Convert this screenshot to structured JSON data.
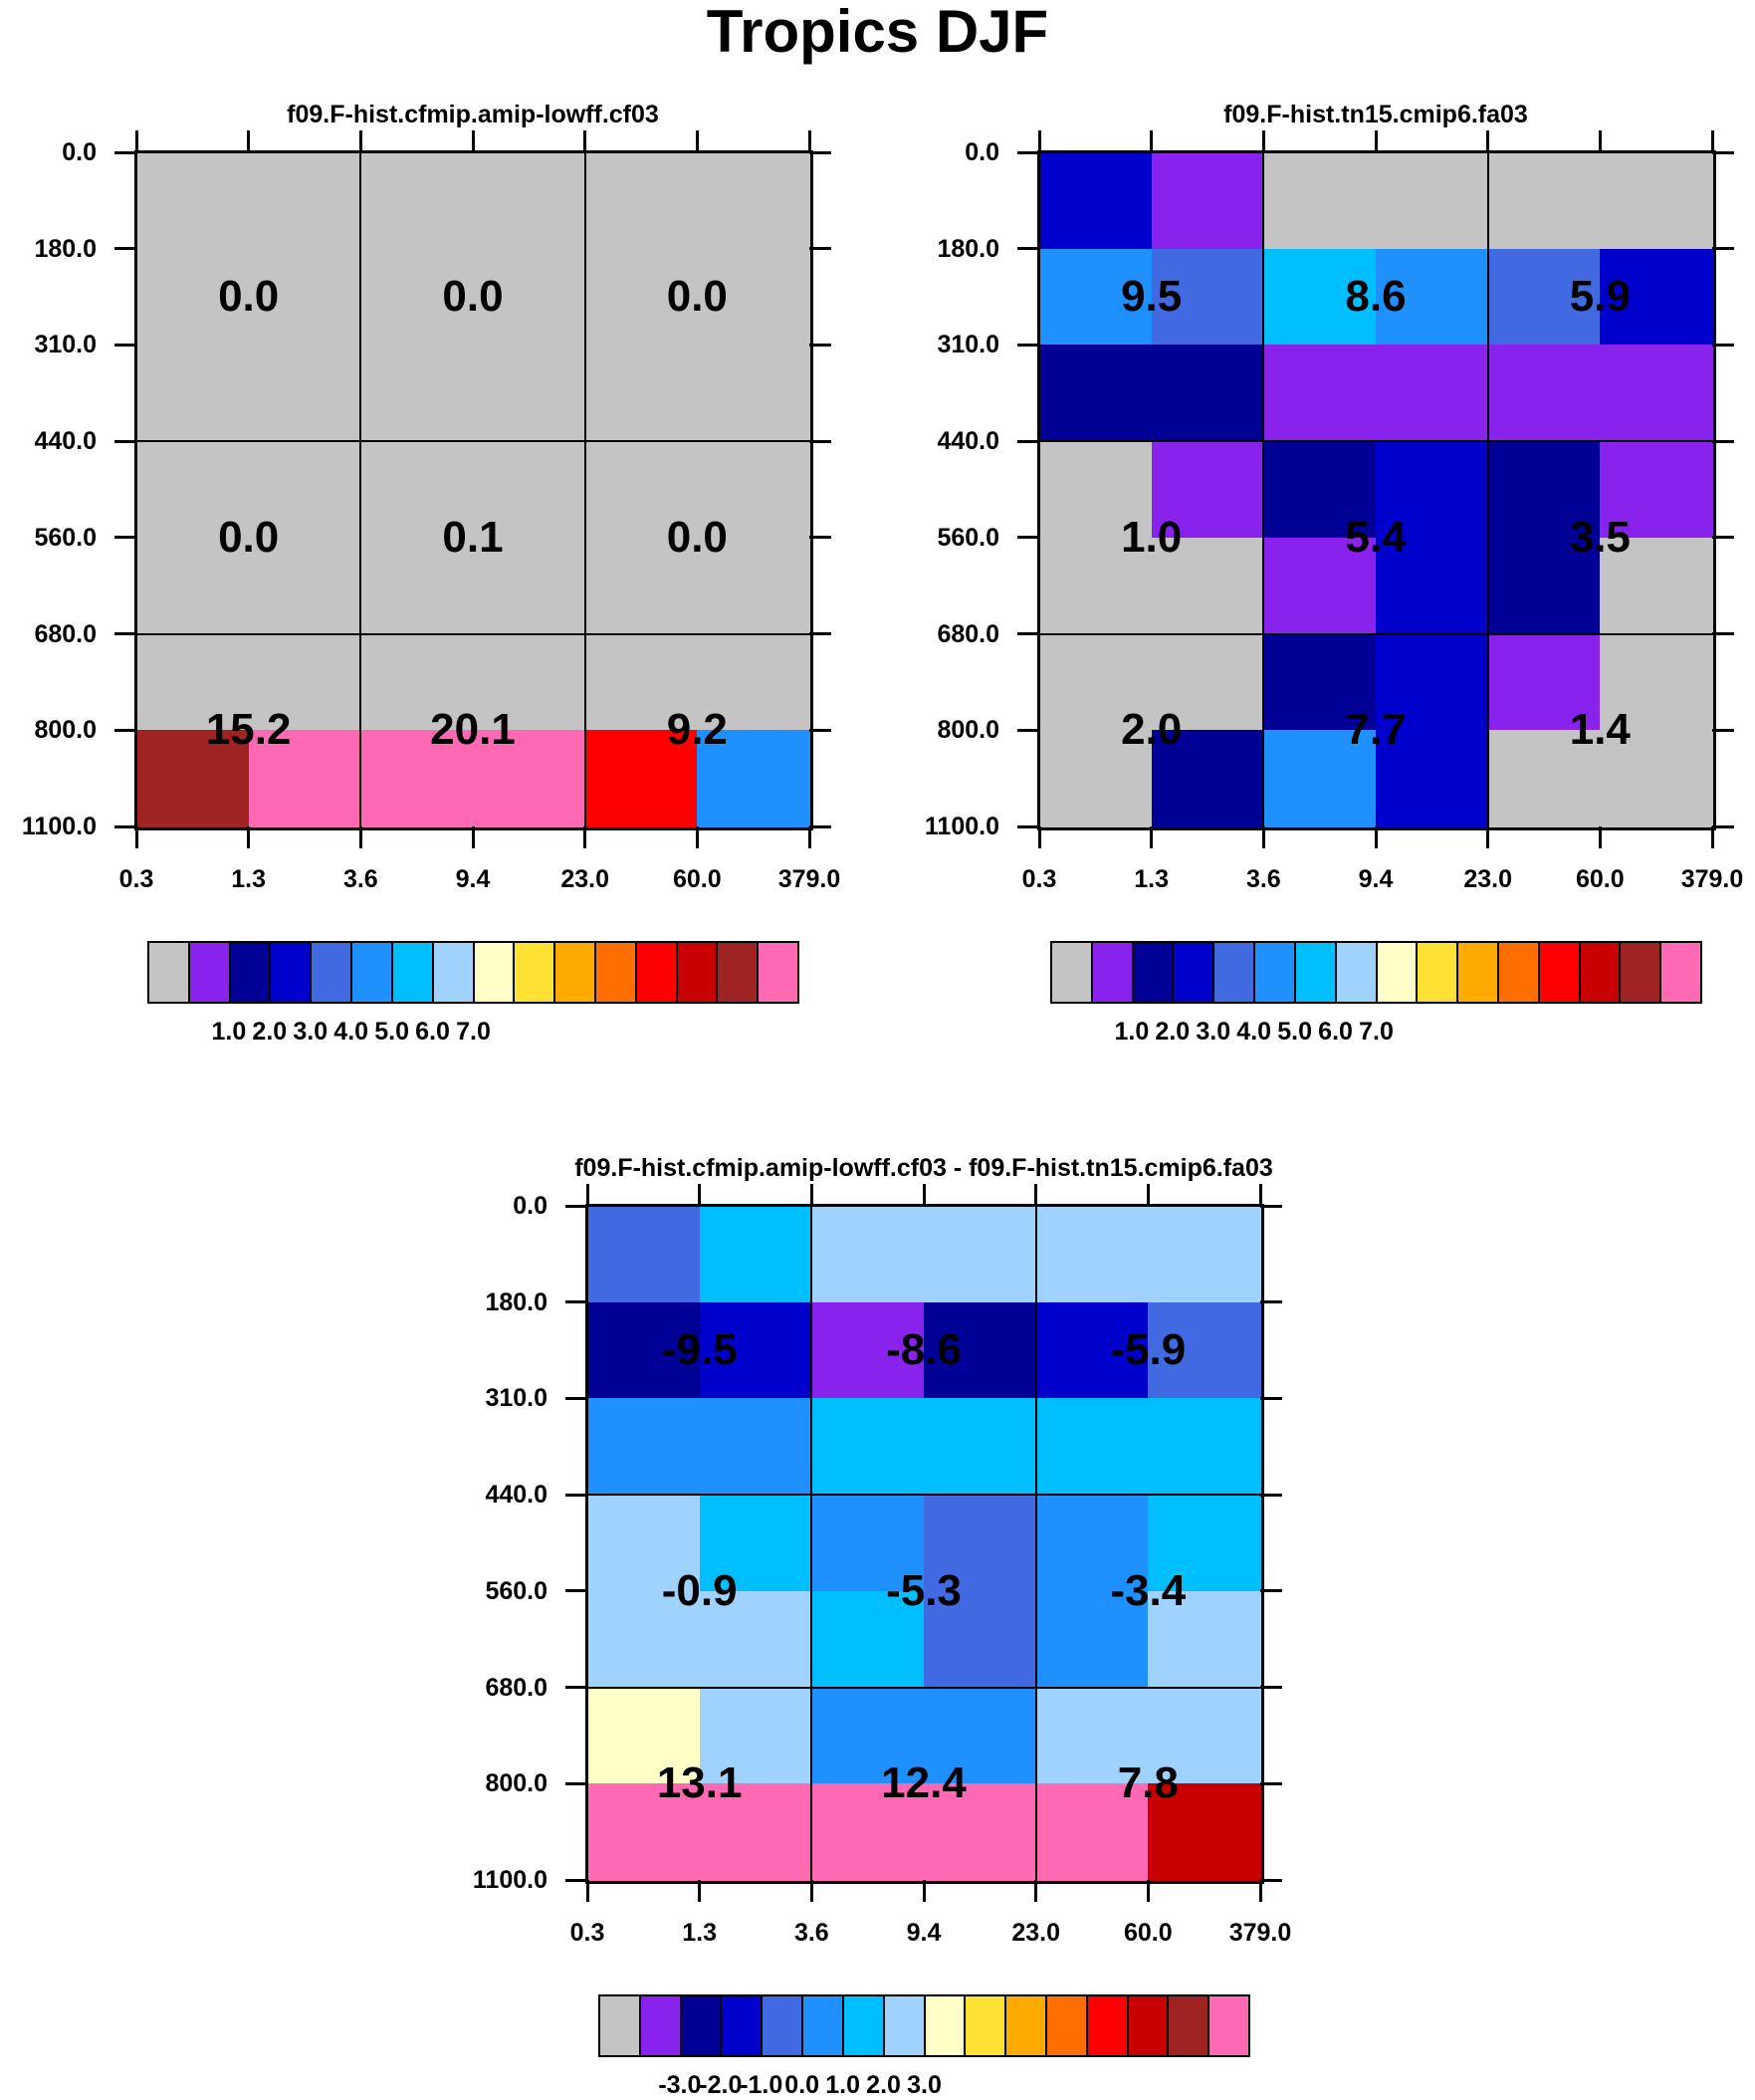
{
  "title": "Tropics DJF",
  "chart_data": {
    "type": "heatmap",
    "colormap": [
      "#c4c4c4",
      "#8a22ee",
      "#000096",
      "#0000cd",
      "#4169e1",
      "#1e90ff",
      "#00bfff",
      "#a0d2ff",
      "#ffffc8",
      "#ffe133",
      "#ffaa00",
      "#ff6e00",
      "#ff0000",
      "#c80000",
      "#a02323",
      "#ff69b4"
    ],
    "panels": [
      {
        "title": "f09.F-hist.cfmip.amip-lowff.cf03",
        "x_ticks": [
          "0.3",
          "1.3",
          "3.6",
          "9.4",
          "23.0",
          "60.0",
          "379.0"
        ],
        "y_ticks": [
          "0.0",
          "180.0",
          "310.0",
          "440.0",
          "560.0",
          "680.0",
          "800.0",
          "1100.0"
        ],
        "cells": [
          [
            0,
            0,
            0,
            0,
            0,
            0
          ],
          [
            0,
            0,
            0,
            0,
            0,
            0
          ],
          [
            0,
            0,
            0,
            0,
            0,
            0
          ],
          [
            0,
            0,
            0,
            0,
            0,
            0
          ],
          [
            0,
            0,
            0,
            0,
            0,
            0
          ],
          [
            0,
            0,
            0,
            0,
            0,
            0
          ],
          [
            14,
            15,
            15,
            15,
            12,
            5
          ]
        ],
        "values": [
          [
            "0.0",
            "0.0",
            "0.0"
          ],
          [
            "0.0",
            "0.1",
            "0.0"
          ],
          [
            "15.2",
            "20.1",
            "9.2"
          ]
        ],
        "colorbar_labels": [
          "1.0",
          "2.0",
          "3.0",
          "4.0",
          "5.0",
          "6.0",
          "7.0"
        ]
      },
      {
        "title": "f09.F-hist.tn15.cmip6.fa03",
        "x_ticks": [
          "0.3",
          "1.3",
          "3.6",
          "9.4",
          "23.0",
          "60.0",
          "379.0"
        ],
        "y_ticks": [
          "0.0",
          "180.0",
          "310.0",
          "440.0",
          "560.0",
          "680.0",
          "800.0",
          "1100.0"
        ],
        "cells": [
          [
            3,
            1,
            0,
            0,
            0,
            0
          ],
          [
            5,
            4,
            6,
            5,
            4,
            3
          ],
          [
            2,
            2,
            1,
            1,
            1,
            1
          ],
          [
            0,
            1,
            2,
            3,
            2,
            1
          ],
          [
            0,
            0,
            1,
            3,
            2,
            0
          ],
          [
            0,
            0,
            2,
            3,
            1,
            0
          ],
          [
            0,
            2,
            5,
            3,
            0,
            0
          ]
        ],
        "values": [
          [
            "9.5",
            "8.6",
            "5.9"
          ],
          [
            "1.0",
            "5.4",
            "3.5"
          ],
          [
            "2.0",
            "7.7",
            "1.4"
          ]
        ],
        "colorbar_labels": [
          "1.0",
          "2.0",
          "3.0",
          "4.0",
          "5.0",
          "6.0",
          "7.0"
        ]
      },
      {
        "title": "f09.F-hist.cfmip.amip-lowff.cf03 - f09.F-hist.tn15.cmip6.fa03",
        "x_ticks": [
          "0.3",
          "1.3",
          "3.6",
          "9.4",
          "23.0",
          "60.0",
          "379.0"
        ],
        "y_ticks": [
          "0.0",
          "180.0",
          "310.0",
          "440.0",
          "560.0",
          "680.0",
          "800.0",
          "1100.0"
        ],
        "cells": [
          [
            4,
            6,
            7,
            7,
            7,
            7
          ],
          [
            2,
            3,
            1,
            2,
            3,
            4
          ],
          [
            5,
            5,
            6,
            6,
            6,
            6
          ],
          [
            7,
            6,
            5,
            4,
            5,
            6
          ],
          [
            7,
            7,
            6,
            4,
            5,
            7
          ],
          [
            8,
            7,
            5,
            5,
            7,
            7
          ],
          [
            15,
            15,
            15,
            15,
            15,
            13
          ]
        ],
        "values": [
          [
            "-9.5",
            "-8.6",
            "-5.9"
          ],
          [
            "-0.9",
            "-5.3",
            "-3.4"
          ],
          [
            "13.1",
            "12.4",
            "7.8"
          ]
        ],
        "colorbar_labels": [
          "-3.0",
          "-2.0",
          "-1.0",
          "0.0",
          "1.0",
          "2.0",
          "3.0"
        ]
      }
    ]
  }
}
